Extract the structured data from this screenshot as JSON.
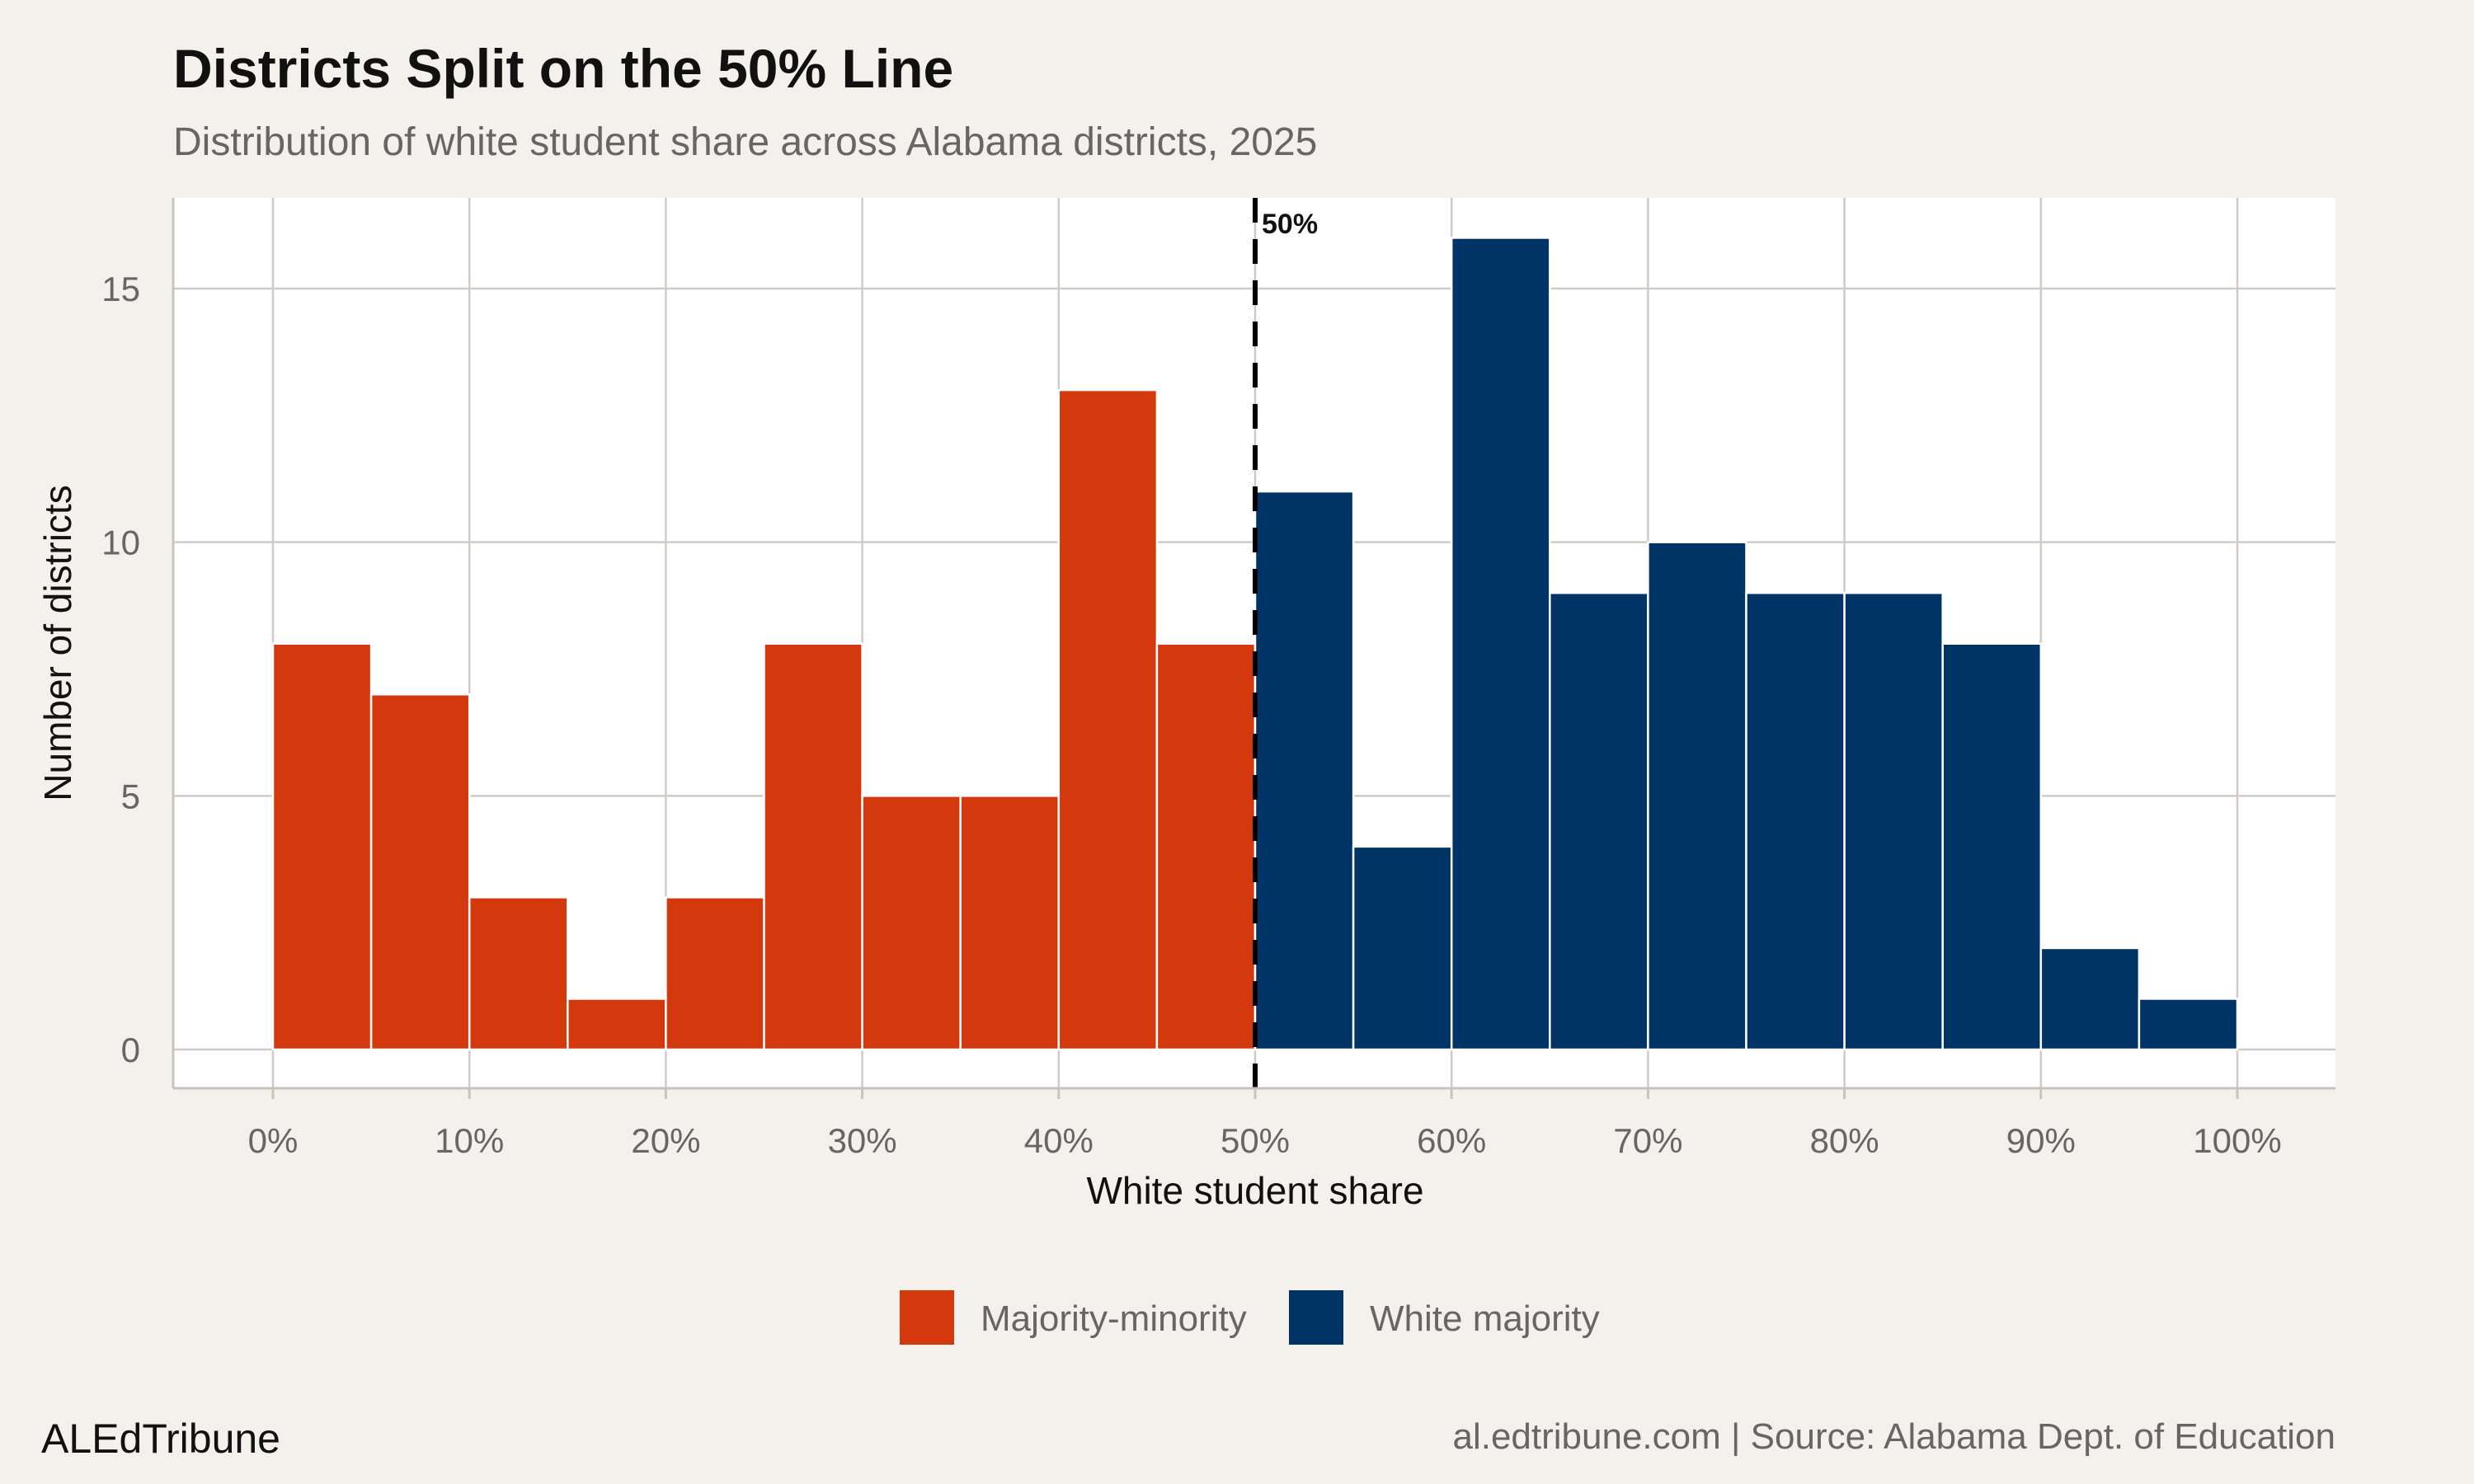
{
  "chart_data": {
    "type": "bar",
    "title": "Districts Split on the 50% Line",
    "subtitle": "Distribution of white student share across Alabama districts, 2025",
    "xlabel": "White student share",
    "ylabel": "Number of districts",
    "bin_width_percent": 5,
    "xlim": [
      0,
      100
    ],
    "ylim": [
      0,
      16
    ],
    "x_ticks": [
      "0%",
      "10%",
      "20%",
      "30%",
      "40%",
      "50%",
      "60%",
      "70%",
      "80%",
      "90%",
      "100%"
    ],
    "y_ticks": [
      "0",
      "5",
      "10",
      "15"
    ],
    "grid": true,
    "reference_line": {
      "x": 50,
      "label": "50%",
      "style": "dashed"
    },
    "series": [
      {
        "name": "Majority-minority",
        "color": "#d4380d",
        "bin_starts": [
          0,
          5,
          10,
          15,
          20,
          25,
          30,
          35,
          40,
          45
        ],
        "values": [
          8,
          7,
          3,
          1,
          3,
          8,
          5,
          5,
          13,
          8
        ]
      },
      {
        "name": "White majority",
        "color": "#003366",
        "bin_starts": [
          50,
          55,
          60,
          65,
          70,
          75,
          80,
          85,
          90,
          95
        ],
        "values": [
          11,
          4,
          16,
          9,
          10,
          9,
          9,
          8,
          2,
          1
        ]
      }
    ],
    "legend_position": "bottom"
  },
  "footer": {
    "brand": "ALEdTribune",
    "source": "al.edtribune.com | Source: Alabama Dept. of Education"
  }
}
